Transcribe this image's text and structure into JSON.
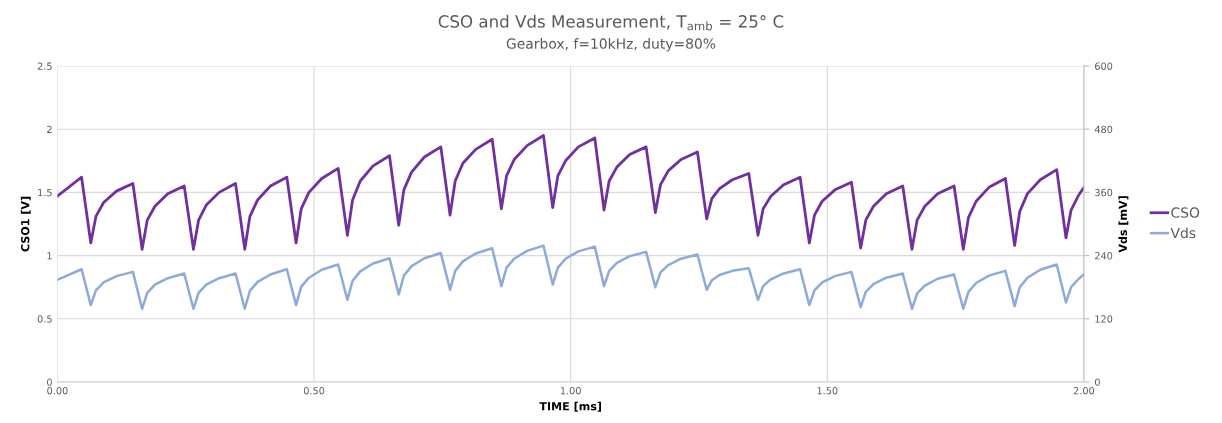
{
  "chart_data": {
    "type": "line",
    "title": "CSO and Vds Measurement, T$_{amb}$ = 25° C",
    "subtitle": "Gearbox, f=10kHz, duty=80%",
    "xlabel": "TIME [ms]",
    "ylabel": "CSO1 [V]",
    "y2label": "Vds [mV]",
    "x": [
      0,
      0.047,
      0.065,
      0.075,
      0.09,
      0.115,
      0.147,
      0.165,
      0.175,
      0.19,
      0.215,
      0.247,
      0.265,
      0.275,
      0.29,
      0.315,
      0.347,
      0.365,
      0.375,
      0.39,
      0.415,
      0.447,
      0.465,
      0.475,
      0.49,
      0.515,
      0.547,
      0.565,
      0.575,
      0.59,
      0.615,
      0.647,
      0.665,
      0.675,
      0.69,
      0.715,
      0.747,
      0.765,
      0.775,
      0.79,
      0.815,
      0.847,
      0.865,
      0.875,
      0.89,
      0.915,
      0.947,
      0.965,
      0.975,
      0.99,
      1.015,
      1.047,
      1.065,
      1.075,
      1.09,
      1.115,
      1.147,
      1.165,
      1.175,
      1.19,
      1.215,
      1.247,
      1.265,
      1.275,
      1.29,
      1.315,
      1.347,
      1.365,
      1.375,
      1.39,
      1.415,
      1.447,
      1.465,
      1.475,
      1.49,
      1.515,
      1.547,
      1.565,
      1.575,
      1.59,
      1.615,
      1.647,
      1.665,
      1.675,
      1.69,
      1.715,
      1.747,
      1.765,
      1.775,
      1.79,
      1.815,
      1.847,
      1.865,
      1.875,
      1.89,
      1.915,
      1.947,
      1.965,
      1.975,
      1.99,
      2.0
    ],
    "series": [
      {
        "name": "CSO",
        "color": "#7030a0",
        "values": [
          1.47,
          1.62,
          1.1,
          1.31,
          1.42,
          1.51,
          1.57,
          1.05,
          1.28,
          1.39,
          1.49,
          1.55,
          1.05,
          1.28,
          1.4,
          1.5,
          1.57,
          1.05,
          1.31,
          1.44,
          1.55,
          1.62,
          1.1,
          1.37,
          1.5,
          1.61,
          1.69,
          1.16,
          1.44,
          1.59,
          1.71,
          1.79,
          1.24,
          1.52,
          1.66,
          1.78,
          1.86,
          1.32,
          1.59,
          1.73,
          1.84,
          1.92,
          1.37,
          1.63,
          1.76,
          1.87,
          1.95,
          1.38,
          1.63,
          1.75,
          1.86,
          1.93,
          1.36,
          1.59,
          1.7,
          1.8,
          1.86,
          1.34,
          1.56,
          1.67,
          1.76,
          1.82,
          1.29,
          1.45,
          1.53,
          1.6,
          1.65,
          1.16,
          1.37,
          1.47,
          1.56,
          1.62,
          1.1,
          1.32,
          1.43,
          1.52,
          1.58,
          1.06,
          1.28,
          1.39,
          1.49,
          1.55,
          1.05,
          1.28,
          1.39,
          1.49,
          1.55,
          1.05,
          1.3,
          1.43,
          1.54,
          1.61,
          1.08,
          1.35,
          1.49,
          1.6,
          1.68,
          1.14,
          1.36,
          1.48,
          1.54
        ]
      },
      {
        "name": "Vds",
        "color": "#8eaadb",
        "axis": "y2",
        "values": [
          194,
          214,
          146,
          174,
          189,
          201,
          209,
          139,
          169,
          185,
          197,
          206,
          139,
          169,
          185,
          197,
          206,
          139,
          173,
          190,
          204,
          214,
          146,
          181,
          198,
          213,
          223,
          156,
          192,
          210,
          225,
          235,
          166,
          202,
          220,
          235,
          245,
          175,
          211,
          229,
          244,
          254,
          182,
          217,
          234,
          249,
          259,
          185,
          217,
          234,
          248,
          257,
          182,
          211,
          226,
          239,
          247,
          180,
          208,
          222,
          234,
          242,
          175,
          193,
          203,
          211,
          216,
          156,
          182,
          195,
          206,
          214,
          146,
          174,
          189,
          201,
          209,
          142,
          171,
          186,
          198,
          206,
          139,
          168,
          183,
          196,
          204,
          139,
          171,
          188,
          202,
          211,
          144,
          180,
          198,
          213,
          223,
          151,
          180,
          196,
          204
        ]
      }
    ],
    "xlim": [
      0,
      2
    ],
    "xticks": [
      {
        "value": 0,
        "label": "0.00"
      },
      {
        "value": 0.5,
        "label": "0.50"
      },
      {
        "value": 1,
        "label": "1.00"
      },
      {
        "value": 1.5,
        "label": "1.50"
      },
      {
        "value": 2,
        "label": "2.00"
      }
    ],
    "ylim": [
      0,
      2.5
    ],
    "yticks": [
      0,
      0.5,
      1,
      1.5,
      2,
      2.5
    ],
    "y2lim": [
      0,
      600
    ],
    "y2ticks": [
      0,
      120,
      240,
      360,
      480,
      600
    ],
    "grid": true,
    "legend": "right",
    "marker": "none",
    "line_style": "solid"
  }
}
